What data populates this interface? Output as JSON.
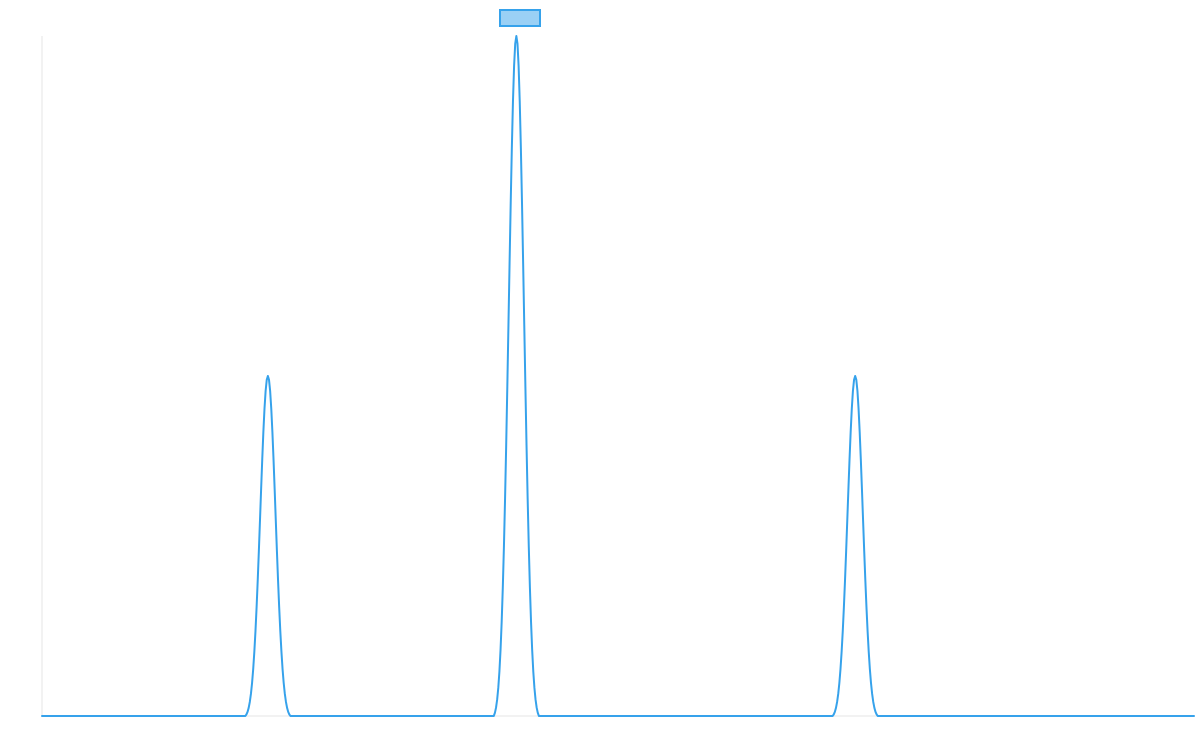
{
  "chart_data": {
    "type": "line",
    "title": "",
    "xlabel": "",
    "ylabel": "",
    "xlim": [
      0,
      255
    ],
    "ylim": [
      0,
      150
    ],
    "grid": false,
    "legend": {
      "position": "top-center",
      "show": true
    },
    "colors": {
      "line": "#36a2eb",
      "legend_fill": "#9ad0f5",
      "axis": "#e6e6e6",
      "background": "#ffffff"
    },
    "series": [
      {
        "label": "",
        "peaks": [
          {
            "center": 50,
            "height": 75,
            "half_width": 5
          },
          {
            "center": 105,
            "height": 150,
            "half_width": 5
          },
          {
            "center": 180,
            "height": 75,
            "half_width": 5
          }
        ],
        "baseline": 0
      }
    ]
  }
}
